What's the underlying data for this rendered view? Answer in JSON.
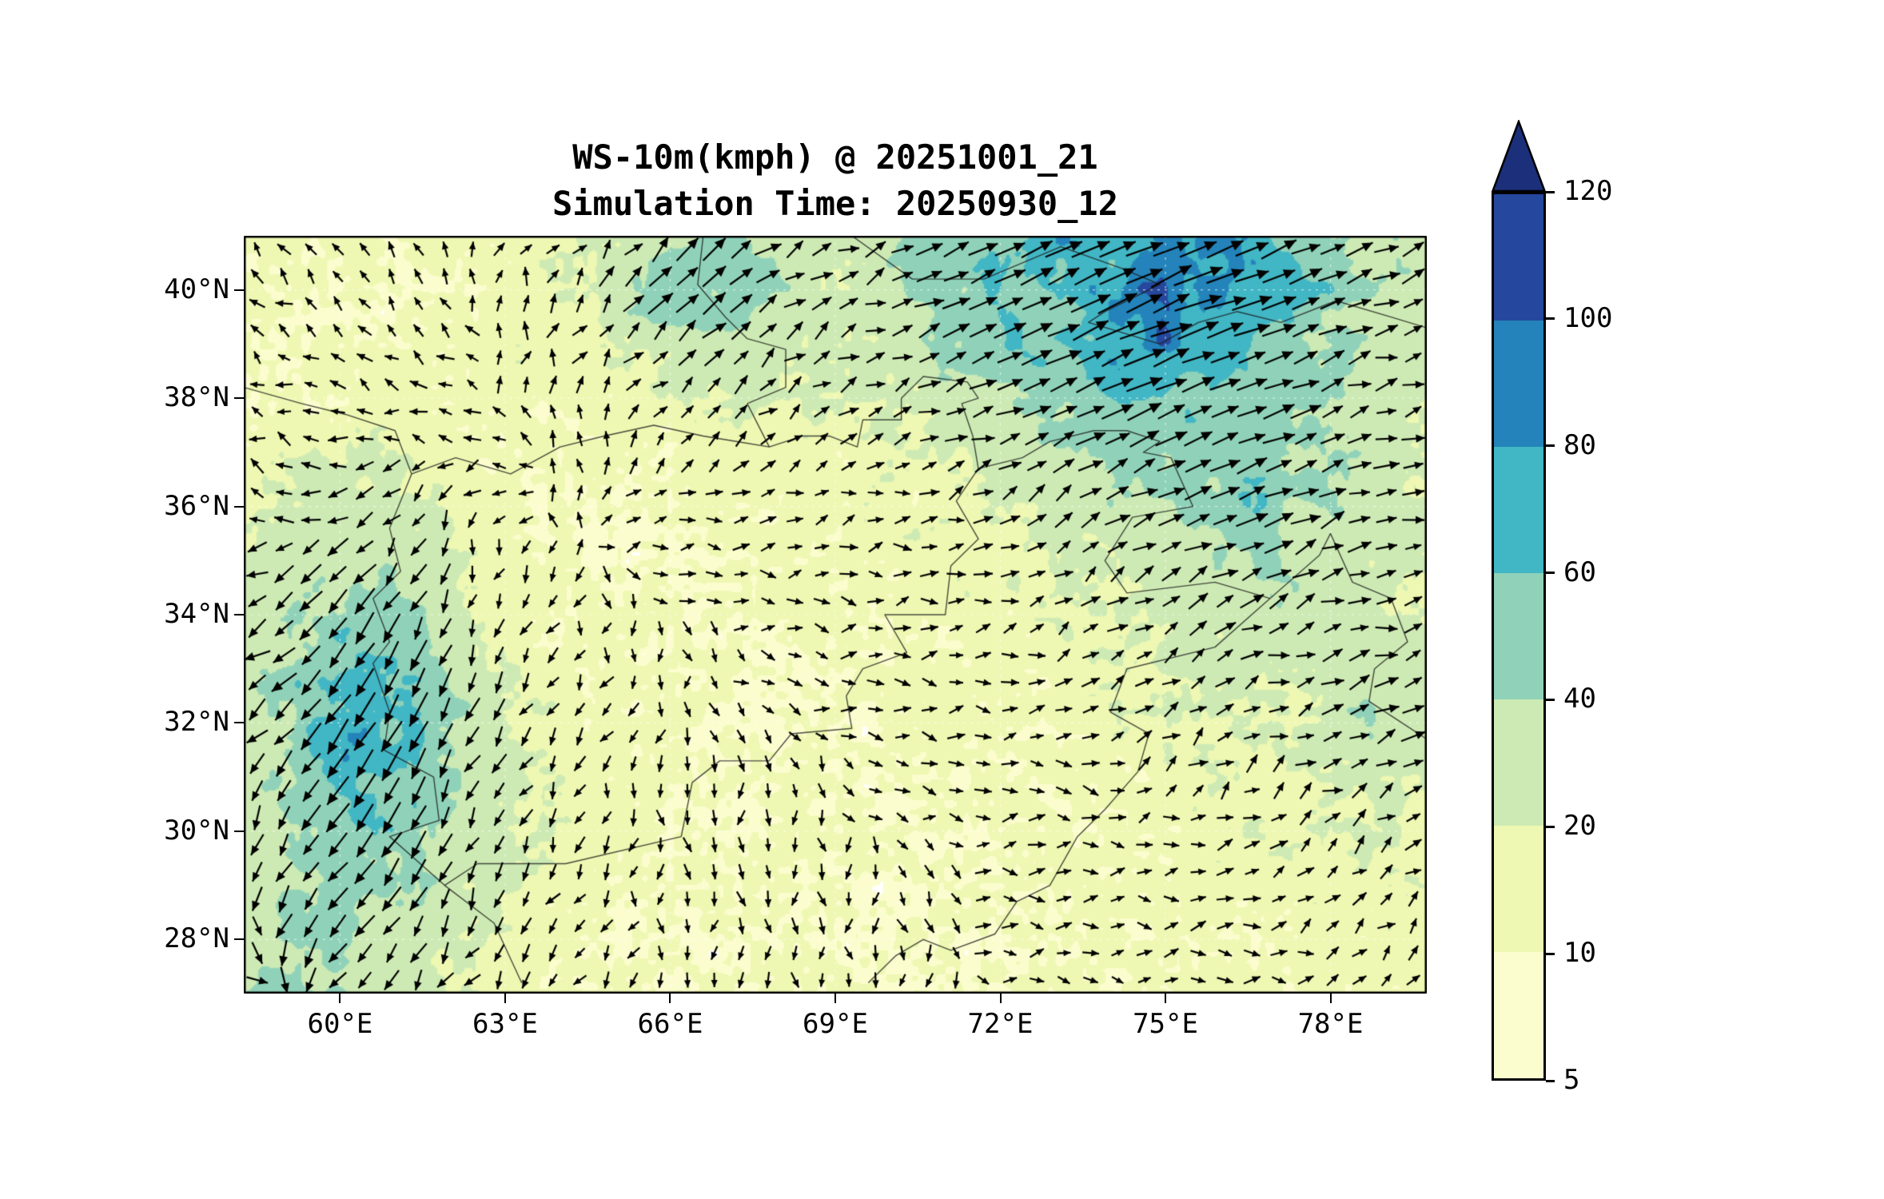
{
  "figure": {
    "background": "#ffffff"
  },
  "chart_data": {
    "type": "heatmap",
    "subtype": "filled-contour wind speed map with quiver vectors",
    "title": "WS-10m(kmph) @ 20251001_21",
    "subtitle": "Simulation Time: 20250930_12",
    "field": "10 m wind speed (kmph) shaded, with wind direction arrows",
    "units": "kmph",
    "xlabel": "",
    "ylabel": "",
    "lon_range": [
      58.25,
      79.75
    ],
    "lat_range": [
      27,
      41
    ],
    "x_ticks": [
      {
        "value": 60,
        "label": "60°E"
      },
      {
        "value": 63,
        "label": "63°E"
      },
      {
        "value": 66,
        "label": "66°E"
      },
      {
        "value": 69,
        "label": "69°E"
      },
      {
        "value": 72,
        "label": "72°E"
      },
      {
        "value": 75,
        "label": "75°E"
      },
      {
        "value": 78,
        "label": "78°E"
      }
    ],
    "y_ticks": [
      {
        "value": 28,
        "label": "28°N"
      },
      {
        "value": 30,
        "label": "30°N"
      },
      {
        "value": 32,
        "label": "32°N"
      },
      {
        "value": 34,
        "label": "34°N"
      },
      {
        "value": 36,
        "label": "36°N"
      },
      {
        "value": 38,
        "label": "38°N"
      },
      {
        "value": 40,
        "label": "40°N"
      }
    ],
    "colorbar": {
      "levels": [
        5,
        10,
        20,
        40,
        60,
        80,
        100,
        120
      ],
      "labels": [
        "5",
        "10",
        "20",
        "40",
        "60",
        "80",
        "100",
        "120"
      ],
      "colors": [
        "#fcfdcf",
        "#eef8b2",
        "#cdeab4",
        "#8fd2b9",
        "#41b6c4",
        "#2383ba",
        "#25479d"
      ],
      "over_color": "#1c2f7a",
      "under_color": "#ffffff",
      "extend": "max"
    },
    "speed_grid": {
      "cols": 22,
      "rows": 15,
      "lon0": 58.25,
      "lon1": 79.75,
      "lat0": 41,
      "lat1": 27,
      "values": [
        [
          12,
          14,
          12,
          10,
          12,
          14,
          16,
          30,
          48,
          42,
          24,
          28,
          45,
          55,
          62,
          70,
          66,
          82,
          70,
          50,
          38,
          32
        ],
        [
          14,
          12,
          10,
          10,
          12,
          15,
          20,
          42,
          55,
          45,
          28,
          24,
          38,
          50,
          56,
          66,
          82,
          92,
          74,
          54,
          36,
          28
        ],
        [
          12,
          10,
          10,
          12,
          12,
          14,
          16,
          24,
          34,
          28,
          20,
          22,
          30,
          45,
          52,
          62,
          90,
          72,
          50,
          40,
          30,
          24
        ],
        [
          10,
          10,
          12,
          14,
          12,
          12,
          14,
          15,
          18,
          20,
          18,
          20,
          25,
          32,
          42,
          52,
          62,
          46,
          56,
          44,
          30,
          22
        ],
        [
          12,
          18,
          22,
          16,
          12,
          10,
          12,
          12,
          14,
          15,
          15,
          16,
          18,
          22,
          30,
          40,
          46,
          56,
          46,
          40,
          34,
          25
        ],
        [
          15,
          22,
          26,
          20,
          14,
          12,
          10,
          10,
          12,
          12,
          14,
          14,
          16,
          18,
          22,
          30,
          36,
          42,
          50,
          40,
          30,
          20
        ],
        [
          20,
          30,
          36,
          26,
          16,
          12,
          10,
          10,
          10,
          12,
          12,
          14,
          14,
          16,
          18,
          22,
          28,
          32,
          42,
          34,
          25,
          18
        ],
        [
          25,
          40,
          52,
          40,
          20,
          14,
          12,
          10,
          10,
          10,
          12,
          12,
          12,
          14,
          16,
          18,
          22,
          26,
          30,
          28,
          22,
          16
        ],
        [
          30,
          46,
          62,
          55,
          30,
          16,
          12,
          10,
          10,
          10,
          10,
          12,
          12,
          12,
          14,
          16,
          18,
          20,
          24,
          22,
          30,
          25
        ],
        [
          28,
          52,
          72,
          60,
          35,
          18,
          14,
          12,
          10,
          10,
          10,
          10,
          12,
          12,
          12,
          14,
          16,
          18,
          20,
          20,
          36,
          30
        ],
        [
          25,
          46,
          66,
          55,
          30,
          20,
          14,
          12,
          10,
          10,
          10,
          10,
          10,
          12,
          12,
          12,
          14,
          16,
          18,
          18,
          26,
          20
        ],
        [
          22,
          40,
          56,
          46,
          28,
          18,
          14,
          12,
          10,
          10,
          10,
          10,
          10,
          10,
          12,
          12,
          12,
          14,
          16,
          16,
          18,
          15
        ],
        [
          26,
          36,
          46,
          40,
          25,
          16,
          12,
          10,
          10,
          10,
          10,
          10,
          10,
          10,
          10,
          12,
          12,
          12,
          14,
          14,
          15,
          14
        ],
        [
          30,
          42,
          36,
          30,
          20,
          14,
          12,
          10,
          10,
          10,
          10,
          10,
          10,
          10,
          10,
          10,
          12,
          12,
          12,
          12,
          14,
          12
        ],
        [
          36,
          46,
          30,
          25,
          18,
          14,
          12,
          10,
          10,
          10,
          10,
          10,
          10,
          10,
          10,
          10,
          10,
          12,
          12,
          12,
          12,
          12
        ]
      ]
    },
    "wind_u": {
      "cols": 12,
      "rows": 8,
      "lon0": 58.25,
      "lon1": 79.75,
      "lat0": 41,
      "lat1": 27,
      "values": [
        [
          -3,
          -2,
          0,
          2,
          3,
          3,
          4,
          6,
          8,
          9,
          7,
          5
        ],
        [
          -3,
          -2,
          -1,
          1,
          2,
          3,
          5,
          7,
          9,
          9,
          8,
          6
        ],
        [
          -2,
          -1,
          -1,
          0,
          1,
          2,
          3,
          4,
          6,
          7,
          6,
          5
        ],
        [
          -1,
          -2,
          -1,
          0,
          1,
          1,
          1,
          2,
          3,
          4,
          4,
          3
        ],
        [
          -2,
          -3,
          -2,
          -1,
          0,
          1,
          1,
          1,
          1,
          2,
          3,
          3
        ],
        [
          -1,
          -2,
          -3,
          -1,
          0,
          0,
          1,
          1,
          1,
          1,
          2,
          2
        ],
        [
          0,
          -2,
          -2,
          -1,
          0,
          0,
          0,
          1,
          1,
          1,
          1,
          1
        ],
        [
          1,
          -1,
          -2,
          -1,
          0,
          0,
          0,
          0,
          1,
          1,
          1,
          1
        ]
      ]
    },
    "wind_v": {
      "cols": 12,
      "rows": 8,
      "lon0": 58.25,
      "lon1": 79.75,
      "lat0": 41,
      "lat1": 27,
      "values": [
        [
          2,
          2,
          2,
          3,
          3,
          2,
          2,
          3,
          4,
          4,
          3,
          2
        ],
        [
          2,
          1,
          1,
          2,
          2,
          2,
          2,
          3,
          4,
          3,
          3,
          2
        ],
        [
          1,
          0,
          0,
          1,
          1,
          1,
          1,
          2,
          3,
          3,
          2,
          2
        ],
        [
          0,
          -2,
          -3,
          0,
          0,
          0,
          0,
          1,
          2,
          2,
          2,
          1
        ],
        [
          -1,
          -4,
          -6,
          -2,
          -1,
          0,
          0,
          0,
          1,
          1,
          1,
          1
        ],
        [
          -1,
          -3,
          -6,
          -2,
          -1,
          -1,
          0,
          0,
          0,
          1,
          1,
          1
        ],
        [
          -1,
          -2,
          -4,
          -2,
          -1,
          -1,
          -1,
          0,
          0,
          0,
          1,
          1
        ],
        [
          0,
          -1,
          -3,
          -1,
          -1,
          -1,
          -1,
          0,
          0,
          0,
          0,
          1
        ]
      ]
    },
    "borders": [
      [
        [
          61.3,
          36.6
        ],
        [
          60.9,
          35.6
        ],
        [
          61.1,
          34.8
        ],
        [
          60.6,
          34.3
        ],
        [
          60.9,
          33.5
        ],
        [
          60.6,
          33.1
        ],
        [
          60.9,
          32.2
        ],
        [
          60.8,
          31.5
        ],
        [
          61.7,
          31.0
        ],
        [
          61.8,
          30.2
        ],
        [
          60.9,
          29.9
        ],
        [
          61.9,
          29.0
        ],
        [
          62.8,
          28.3
        ],
        [
          63.3,
          27.2
        ]
      ],
      [
        [
          58.25,
          38.2
        ],
        [
          59.3,
          37.9
        ],
        [
          60.1,
          37.7
        ],
        [
          61.0,
          37.4
        ],
        [
          61.3,
          36.6
        ],
        [
          62.1,
          36.9
        ],
        [
          63.1,
          36.6
        ],
        [
          64.0,
          37.1
        ],
        [
          64.8,
          37.3
        ],
        [
          65.7,
          37.5
        ],
        [
          66.6,
          37.3
        ],
        [
          67.2,
          37.2
        ],
        [
          67.8,
          37.1
        ],
        [
          68.4,
          37.3
        ],
        [
          68.9,
          37.3
        ],
        [
          69.4,
          37.1
        ],
        [
          69.5,
          37.6
        ],
        [
          70.2,
          37.6
        ],
        [
          70.2,
          38.0
        ],
        [
          70.6,
          38.4
        ],
        [
          71.4,
          38.3
        ],
        [
          71.6,
          38.0
        ],
        [
          71.3,
          37.9
        ],
        [
          71.5,
          37.3
        ],
        [
          71.6,
          36.7
        ],
        [
          72.4,
          36.9
        ],
        [
          72.9,
          37.2
        ],
        [
          73.7,
          37.4
        ],
        [
          74.3,
          37.4
        ],
        [
          74.9,
          37.2
        ],
        [
          74.6,
          37.0
        ],
        [
          75.1,
          36.9
        ]
      ],
      [
        [
          71.6,
          36.7
        ],
        [
          71.2,
          36.1
        ],
        [
          71.6,
          35.4
        ],
        [
          71.1,
          34.9
        ],
        [
          71.0,
          34.0
        ],
        [
          69.9,
          34.0
        ],
        [
          70.3,
          33.3
        ],
        [
          69.5,
          33.0
        ],
        [
          69.2,
          32.5
        ],
        [
          69.3,
          31.9
        ],
        [
          68.2,
          31.8
        ],
        [
          67.8,
          31.3
        ],
        [
          66.9,
          31.3
        ],
        [
          66.4,
          30.9
        ],
        [
          66.2,
          29.9
        ],
        [
          64.1,
          29.4
        ],
        [
          62.5,
          29.4
        ],
        [
          61.9,
          29.0
        ]
      ],
      [
        [
          75.1,
          36.9
        ],
        [
          75.5,
          36.0
        ],
        [
          74.4,
          35.8
        ],
        [
          73.9,
          35.0
        ],
        [
          74.3,
          34.4
        ],
        [
          75.9,
          34.6
        ],
        [
          76.9,
          34.3
        ],
        [
          75.9,
          33.4
        ],
        [
          74.3,
          33.0
        ],
        [
          74.0,
          32.2
        ],
        [
          74.7,
          31.8
        ],
        [
          74.5,
          31.1
        ],
        [
          73.9,
          30.4
        ],
        [
          73.4,
          29.9
        ],
        [
          72.9,
          29.0
        ],
        [
          72.3,
          28.7
        ],
        [
          71.9,
          28.1
        ],
        [
          71.1,
          27.8
        ],
        [
          70.6,
          28.0
        ],
        [
          70.1,
          27.7
        ],
        [
          69.6,
          27.2
        ]
      ],
      [
        [
          66.6,
          41.0
        ],
        [
          66.5,
          40.1
        ],
        [
          67.0,
          39.5
        ],
        [
          67.4,
          39.1
        ],
        [
          68.1,
          38.9
        ],
        [
          68.1,
          38.2
        ],
        [
          67.4,
          37.9
        ],
        [
          67.8,
          37.1
        ]
      ],
      [
        [
          69.3,
          41.0
        ],
        [
          70.4,
          40.2
        ],
        [
          71.7,
          40.2
        ],
        [
          73.1,
          40.8
        ],
        [
          74.2,
          40.4
        ],
        [
          74.9,
          40.1
        ],
        [
          73.9,
          39.6
        ],
        [
          73.6,
          39.4
        ],
        [
          74.9,
          39.0
        ],
        [
          75.6,
          39.4
        ],
        [
          76.3,
          39.6
        ],
        [
          77.1,
          39.4
        ],
        [
          78.1,
          39.8
        ],
        [
          79.1,
          39.5
        ],
        [
          79.75,
          39.3
        ]
      ],
      [
        [
          76.9,
          34.3
        ],
        [
          77.8,
          35.1
        ],
        [
          78.0,
          35.5
        ],
        [
          78.4,
          34.6
        ],
        [
          79.1,
          34.3
        ],
        [
          79.4,
          33.5
        ],
        [
          78.8,
          33.0
        ],
        [
          78.7,
          32.4
        ],
        [
          79.3,
          32.0
        ],
        [
          79.75,
          31.7
        ]
      ]
    ]
  }
}
